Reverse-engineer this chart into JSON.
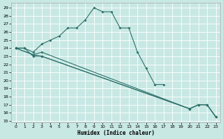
{
  "xlabel": "Humidex (Indice chaleur)",
  "bg_color": "#c8e8e4",
  "grid_color": "#ffffff",
  "line_color": "#2d706a",
  "xlim": [
    -0.5,
    23.5
  ],
  "ylim": [
    14.8,
    29.6
  ],
  "yticks": [
    15,
    16,
    17,
    18,
    19,
    20,
    21,
    22,
    23,
    24,
    25,
    26,
    27,
    28,
    29
  ],
  "xticks": [
    0,
    1,
    2,
    3,
    4,
    5,
    6,
    7,
    8,
    9,
    10,
    11,
    12,
    13,
    14,
    15,
    16,
    17,
    18,
    19,
    20,
    21,
    22,
    23
  ],
  "curve1_x": [
    0,
    1,
    2,
    3,
    4,
    5,
    6,
    7,
    8,
    9,
    10,
    11,
    12,
    13,
    14,
    15,
    16,
    17
  ],
  "curve1_y": [
    24.0,
    24.0,
    23.5,
    24.5,
    25.0,
    25.5,
    26.5,
    26.5,
    27.5,
    29.0,
    28.5,
    28.5,
    26.5,
    26.5,
    23.5,
    21.5,
    19.5,
    19.5
  ],
  "line2_x": [
    0,
    1,
    2,
    3,
    20,
    21,
    22,
    23
  ],
  "line2_y": [
    24.0,
    24.0,
    23.0,
    23.0,
    16.5,
    17.0,
    17.0,
    15.5
  ],
  "line3_x": [
    0,
    2,
    3,
    20,
    21,
    22,
    23
  ],
  "line3_y": [
    24.0,
    23.2,
    23.0,
    16.5,
    17.0,
    17.0,
    15.5
  ],
  "line4_x": [
    0,
    2,
    3,
    20,
    21,
    22,
    23
  ],
  "line4_y": [
    24.0,
    23.2,
    23.5,
    16.5,
    17.0,
    17.0,
    15.5
  ],
  "figsize": [
    3.2,
    2.0
  ],
  "dpi": 100
}
